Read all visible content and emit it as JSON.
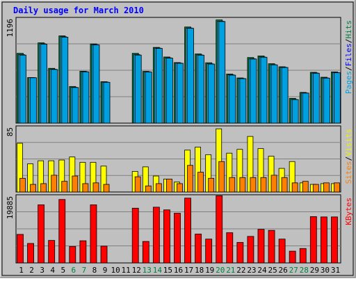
{
  "chart_data": {
    "type": "bar",
    "title": "Daily usage for March 2010",
    "categories": [
      "1",
      "2",
      "3",
      "4",
      "5",
      "6",
      "7",
      "8",
      "9",
      "10",
      "11",
      "12",
      "13",
      "14",
      "15",
      "16",
      "17",
      "18",
      "19",
      "20",
      "21",
      "22",
      "23",
      "24",
      "25",
      "26",
      "27",
      "28",
      "29",
      "30",
      "31"
    ],
    "weekend_days": [
      "6",
      "7",
      "13",
      "14",
      "20",
      "21",
      "27",
      "28"
    ],
    "panels": [
      {
        "name": "hits-files-pages",
        "ymax_label": "1196",
        "ylim": [
          0,
          1196
        ],
        "side_label": [
          "Pages",
          "/",
          "Files",
          "/",
          "Hits"
        ],
        "side_label_colors": [
          "#00A0E0",
          "#000000",
          "#0000FF",
          "#000000",
          "#008040"
        ],
        "series": [
          {
            "name": "Hits",
            "color": "#008040",
            "values": [
              800,
              522,
              920,
              628,
              1000,
              420,
              595,
              908,
              475,
              null,
              null,
              800,
              593,
              868,
              758,
              694,
              1102,
              793,
              692,
              1183,
              563,
              518,
              752,
              770,
              681,
              646,
              284,
              352,
              582,
              526,
              587
            ]
          },
          {
            "name": "Files",
            "color": "#00BFFF",
            "values": [
              785,
              522,
              910,
              618,
              990,
              410,
              590,
              900,
              470,
              null,
              null,
              785,
              588,
              860,
              748,
              688,
              1090,
              782,
              680,
              1168,
              553,
              512,
              738,
              758,
              670,
              640,
              272,
              346,
              575,
              518,
              580
            ]
          },
          {
            "name": "Pages",
            "color": "#00A0E0",
            "values": [
              780,
              520,
              905,
              615,
              985,
              408,
              588,
              897,
              468,
              null,
              null,
              780,
              586,
              857,
              745,
              686,
              1087,
              779,
              677,
              1165,
              550,
              510,
              735,
              755,
              668,
              638,
              270,
              344,
              572,
              516,
              578
            ]
          }
        ]
      },
      {
        "name": "visits-sites",
        "ymax_label": "85",
        "ylim": [
          0,
          85
        ],
        "side_label": [
          "Sites",
          "/",
          "Visits"
        ],
        "side_label_colors": [
          "#FF8000",
          "#000000",
          "#F0F000"
        ],
        "series": [
          {
            "name": "Visits",
            "color": "#FFFF00",
            "values": [
              64,
              37,
              41,
              41,
              42,
              46,
              39,
              39,
              34,
              null,
              null,
              27,
              33,
              21,
              17,
              13,
              55,
              59,
              49,
              83,
              51,
              56,
              73,
              57,
              47,
              31,
              40,
              12,
              10,
              11,
              11
            ]
          },
          {
            "name": "Sites",
            "color": "#FF8000",
            "values": [
              18,
              10,
              11,
              22,
              14,
              21,
              11,
              12,
              10,
              null,
              null,
              20,
              8,
              11,
              17,
              11,
              35,
              26,
              18,
              40,
              19,
              19,
              19,
              19,
              22,
              19,
              12,
              14,
              10,
              12,
              12
            ]
          }
        ]
      },
      {
        "name": "kbytes",
        "ymax_label": "19885",
        "ylim": [
          0,
          19885
        ],
        "side_label": [
          "KBytes"
        ],
        "side_label_colors": [
          "#FF0000"
        ],
        "series": [
          {
            "name": "KBytes",
            "color": "#FF0000",
            "values": [
              8500,
              5800,
              17300,
              6700,
              18900,
              4900,
              6600,
              17300,
              5000,
              null,
              null,
              16300,
              6400,
              16600,
              15800,
              14800,
              19300,
              8600,
              7100,
              20000,
              9000,
              6100,
              7900,
              10000,
              9700,
              7100,
              3500,
              4300,
              13800,
              13700,
              13700
            ]
          }
        ]
      }
    ]
  }
}
